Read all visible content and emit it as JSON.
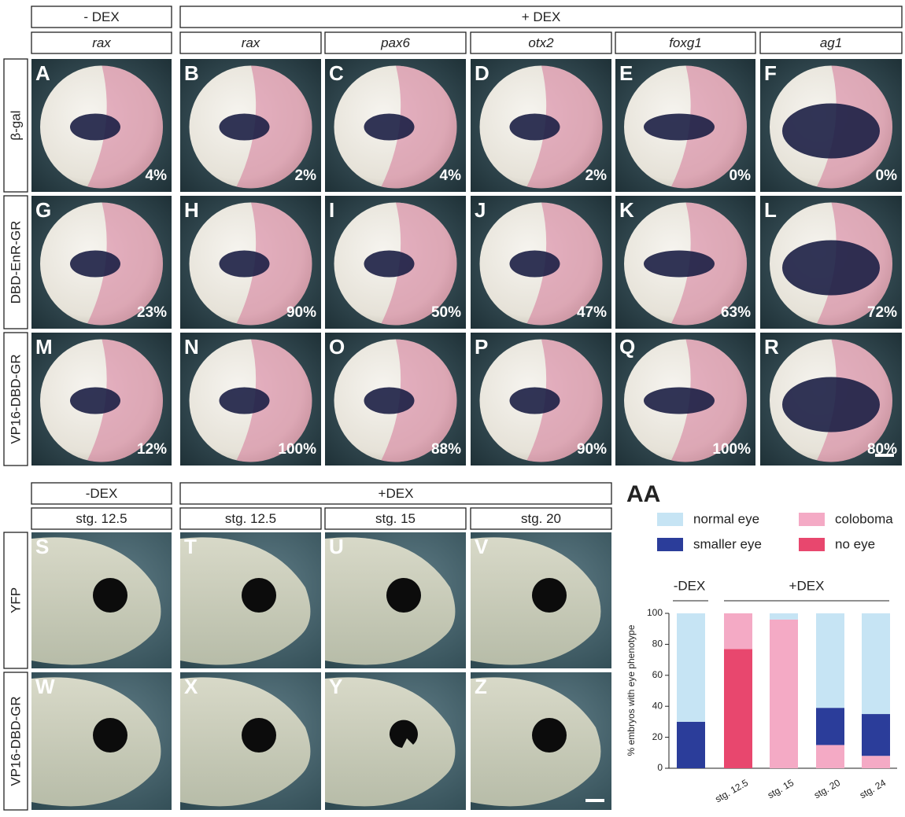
{
  "top": {
    "dex_labels": [
      "- DEX",
      "+ DEX"
    ],
    "genes": [
      "rax",
      "rax",
      "pax6",
      "otx2",
      "foxg1",
      "ag1"
    ],
    "rows": [
      {
        "label": "β-gal",
        "panels": [
          {
            "letter": "A",
            "pct": "4%"
          },
          {
            "letter": "B",
            "pct": "2%"
          },
          {
            "letter": "C",
            "pct": "4%"
          },
          {
            "letter": "D",
            "pct": "2%"
          },
          {
            "letter": "E",
            "pct": "0%"
          },
          {
            "letter": "F",
            "pct": "0%"
          }
        ]
      },
      {
        "label": "DBD-EnR-GR",
        "panels": [
          {
            "letter": "G",
            "pct": "23%"
          },
          {
            "letter": "H",
            "pct": "90%"
          },
          {
            "letter": "I",
            "pct": "50%"
          },
          {
            "letter": "J",
            "pct": "47%"
          },
          {
            "letter": "K",
            "pct": "63%"
          },
          {
            "letter": "L",
            "pct": "72%"
          }
        ]
      },
      {
        "label": "VP16-DBD-GR",
        "panels": [
          {
            "letter": "M",
            "pct": "12%"
          },
          {
            "letter": "N",
            "pct": "100%"
          },
          {
            "letter": "O",
            "pct": "88%"
          },
          {
            "letter": "P",
            "pct": "90%"
          },
          {
            "letter": "Q",
            "pct": "100%"
          },
          {
            "letter": "R",
            "pct": "80%"
          }
        ]
      }
    ]
  },
  "bottom": {
    "dex_labels": [
      "-DEX",
      "+DEX"
    ],
    "stages": [
      "stg. 12.5",
      "stg. 12.5",
      "stg. 15",
      "stg. 20"
    ],
    "rows": [
      {
        "label": "YFP",
        "letters": [
          "S",
          "T",
          "U",
          "V"
        ]
      },
      {
        "label": "VP16-DBD-GR",
        "letters": [
          "W",
          "X",
          "Y",
          "Z"
        ]
      }
    ]
  },
  "chart_data": {
    "type": "bar",
    "stacked": true,
    "title": "AA",
    "y_label": "% embryos with eye phenotype",
    "groups": [
      "-DEX",
      "+DEX"
    ],
    "categories": [
      null,
      "stg. 12.5",
      "stg. 15",
      "stg. 20",
      "stg. 24"
    ],
    "series": [
      {
        "name": "no eye",
        "color": "#e8476e",
        "values": [
          0,
          77,
          0,
          0,
          0
        ]
      },
      {
        "name": "coloboma",
        "color": "#f4aac5",
        "values": [
          0,
          23,
          96,
          15,
          8
        ]
      },
      {
        "name": "smaller eye",
        "color": "#2b3d9a",
        "values": [
          30,
          0,
          0,
          24,
          27
        ]
      },
      {
        "name": "normal eye",
        "color": "#c6e4f4",
        "values": [
          70,
          0,
          4,
          61,
          65
        ]
      }
    ],
    "ylim": [
      0,
      100
    ],
    "yticks": [
      0,
      20,
      40,
      60,
      80,
      100
    ]
  }
}
